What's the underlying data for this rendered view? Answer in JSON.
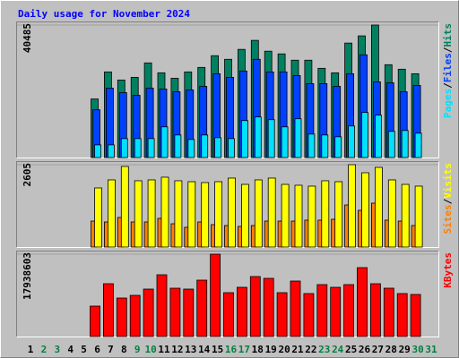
{
  "chart_data": [
    {
      "type": "bar",
      "title": "Daily usage for November 2024",
      "legend_separator": "/",
      "ylim": [
        0,
        40485
      ],
      "yticks": [
        40485
      ],
      "series": [
        {
          "name": "Pages",
          "color": "#00e0ff",
          "values": [
            0,
            0,
            0,
            0,
            0,
            3856,
            3856,
            5783,
            5783,
            5783,
            9364,
            6885,
            5508,
            6885,
            6059,
            5783,
            11291,
            12393,
            11567,
            9364,
            11842,
            7160,
            6885,
            6334,
            9639,
            13770,
            12944,
            7987,
            8262,
            7436,
            0
          ]
        },
        {
          "name": "Files",
          "color": "#0040ff",
          "values": [
            0,
            0,
            0,
            0,
            0,
            14596,
            21206,
            19829,
            19003,
            21206,
            20930,
            20104,
            20655,
            21757,
            25612,
            24511,
            26438,
            30019,
            26163,
            26163,
            25061,
            22583,
            22583,
            21757,
            25612,
            31396,
            23134,
            22858,
            20104,
            22032,
            0
          ]
        },
        {
          "name": "Hits",
          "color": "#008060",
          "values": [
            0,
            0,
            0,
            0,
            0,
            17901,
            26163,
            23685,
            24511,
            28917,
            25888,
            24235,
            26163,
            27541,
            31121,
            30019,
            33049,
            35803,
            32498,
            31672,
            29744,
            29744,
            27265,
            25888,
            34976,
            37180,
            40485,
            28367,
            26990,
            25612,
            0
          ]
        }
      ]
    },
    {
      "type": "bar",
      "legend_separator": "/",
      "ylim": [
        0,
        2605
      ],
      "yticks": [
        2605
      ],
      "series": [
        {
          "name": "Sites",
          "color": "#ff8000",
          "values": [
            0,
            0,
            0,
            0,
            0,
            821,
            793,
            935,
            793,
            793,
            906,
            736,
            623,
            793,
            708,
            680,
            651,
            680,
            821,
            821,
            821,
            850,
            850,
            878,
            1331,
            1161,
            1388,
            850,
            821,
            680,
            0
          ]
        },
        {
          "name": "Visits",
          "color": "#ffff00",
          "values": [
            0,
            0,
            0,
            0,
            0,
            1869,
            2124,
            2549,
            2096,
            2124,
            2209,
            2096,
            2067,
            2039,
            2067,
            2181,
            1982,
            2124,
            2181,
            1982,
            1954,
            1926,
            2096,
            2067,
            2605,
            2350,
            2520,
            2124,
            1982,
            1926,
            0
          ]
        }
      ]
    },
    {
      "type": "bar",
      "ylim": [
        0,
        17938603
      ],
      "yticks": [
        17938603
      ],
      "categories": [
        "1",
        "2",
        "3",
        "4",
        "5",
        "6",
        "7",
        "8",
        "9",
        "10",
        "11",
        "12",
        "13",
        "14",
        "15",
        "16",
        "17",
        "18",
        "19",
        "20",
        "21",
        "22",
        "23",
        "24",
        "25",
        "26",
        "27",
        "28",
        "29",
        "30",
        "31"
      ],
      "category_colors": [
        "#000000",
        "#008040",
        "#008040",
        "#000000",
        "#000000",
        "#000000",
        "#000000",
        "#000000",
        "#008040",
        "#008040",
        "#000000",
        "#000000",
        "#000000",
        "#000000",
        "#000000",
        "#008040",
        "#008040",
        "#000000",
        "#000000",
        "#000000",
        "#000000",
        "#000000",
        "#008040",
        "#008040",
        "#000000",
        "#000000",
        "#000000",
        "#000000",
        "#000000",
        "#008040",
        "#008040"
      ],
      "series": [
        {
          "name": "KBytes",
          "color": "#ff0000",
          "values": [
            0,
            0,
            0,
            0,
            0,
            6629490,
            11504115,
            8384355,
            8969310,
            10334205,
            13453965,
            10529190,
            10334205,
            12284055,
            17938603,
            9554265,
            10724175,
            13063995,
            12674025,
            9554265,
            12089070,
            9359280,
            11309130,
            10724175,
            11309130,
            15013845,
            11504115,
            10529190,
            9359280,
            9164295,
            0
          ]
        }
      ]
    }
  ]
}
